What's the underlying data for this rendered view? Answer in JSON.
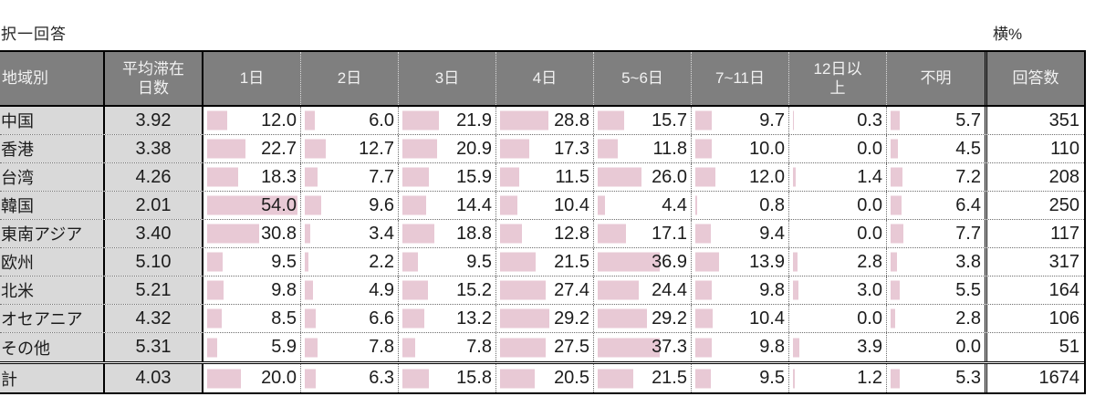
{
  "page": {
    "title": "択一回答",
    "unit_note": "横%"
  },
  "colors": {
    "header_bg": "#7f7f7f",
    "header_text": "#f1f1f1",
    "label_bg": "#d9d9d9",
    "databar": "#e8c9d5",
    "text": "#1c1c1c"
  },
  "table_header": {
    "region": "地域別",
    "avg": "平均滞在\n日数",
    "days": [
      "1日",
      "2日",
      "3日",
      "4日",
      "5~6日",
      "7~11日",
      "12日以\n上",
      "不明"
    ],
    "responses": "回答数"
  },
  "chart_data": {
    "type": "table",
    "title": "択一回答",
    "unit": "横%",
    "row_header": "地域別",
    "columns": [
      "平均滞在日数",
      "1日",
      "2日",
      "3日",
      "4日",
      "5~6日",
      "7~11日",
      "12日以上",
      "不明",
      "回答数"
    ],
    "databar_scale_max": 54.0,
    "rows": [
      {
        "region": "中国",
        "avg": 3.92,
        "percents": [
          12.0,
          6.0,
          21.9,
          28.8,
          15.7,
          9.7,
          0.3,
          5.7
        ],
        "responses": 351
      },
      {
        "region": "香港",
        "avg": 3.38,
        "percents": [
          22.7,
          12.7,
          20.9,
          17.3,
          11.8,
          10.0,
          0.0,
          4.5
        ],
        "responses": 110
      },
      {
        "region": "台湾",
        "avg": 4.26,
        "percents": [
          18.3,
          7.7,
          15.9,
          11.5,
          26.0,
          12.0,
          1.4,
          7.2
        ],
        "responses": 208
      },
      {
        "region": "韓国",
        "avg": 2.01,
        "percents": [
          54.0,
          9.6,
          14.4,
          10.4,
          4.4,
          0.8,
          0.0,
          6.4
        ],
        "responses": 250
      },
      {
        "region": "東南アジア",
        "avg": 3.4,
        "percents": [
          30.8,
          3.4,
          18.8,
          12.8,
          17.1,
          9.4,
          0.0,
          7.7
        ],
        "responses": 117
      },
      {
        "region": "欧州",
        "avg": 5.1,
        "percents": [
          9.5,
          2.2,
          9.5,
          21.5,
          36.9,
          13.9,
          2.8,
          3.8
        ],
        "responses": 317
      },
      {
        "region": "北米",
        "avg": 5.21,
        "percents": [
          9.8,
          4.9,
          15.2,
          27.4,
          24.4,
          9.8,
          3.0,
          5.5
        ],
        "responses": 164
      },
      {
        "region": "オセアニア",
        "avg": 4.32,
        "percents": [
          8.5,
          6.6,
          13.2,
          29.2,
          29.2,
          10.4,
          0.0,
          2.8
        ],
        "responses": 106
      },
      {
        "region": "その他",
        "avg": 5.31,
        "percents": [
          5.9,
          7.8,
          7.8,
          27.5,
          37.3,
          9.8,
          3.9,
          0.0
        ],
        "responses": 51
      }
    ],
    "total_row": {
      "region": "計",
      "avg": 4.03,
      "percents": [
        20.0,
        6.3,
        15.8,
        20.5,
        21.5,
        9.5,
        1.2,
        5.3
      ],
      "responses": 1674
    }
  }
}
